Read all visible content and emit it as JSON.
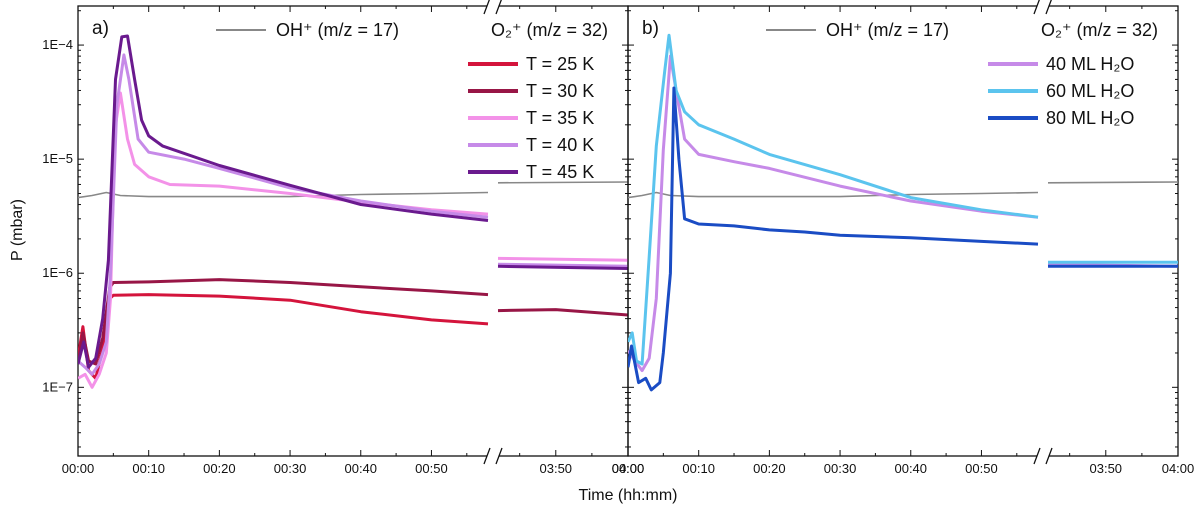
{
  "chart_data": {
    "type": "line",
    "ylabel": "P (mbar)",
    "xlabel": "Time (hh:mm)",
    "yscale": "log",
    "ylim": [
      2.5e-08,
      0.00022
    ],
    "yticks": [
      {
        "value": 0.0001,
        "label": "1E−4"
      },
      {
        "value": 1e-05,
        "label": "1E−5"
      },
      {
        "value": 1e-06,
        "label": "1E−6"
      },
      {
        "value": 1e-07,
        "label": "1E−7"
      }
    ],
    "xticks": [
      {
        "value": 0,
        "label": "00:00"
      },
      {
        "value": 10,
        "label": "00:10"
      },
      {
        "value": 20,
        "label": "00:20"
      },
      {
        "value": 30,
        "label": "00:30"
      },
      {
        "value": 40,
        "label": "00:40"
      },
      {
        "value": 50,
        "label": "00:50"
      },
      {
        "value": 230,
        "label": "03:50"
      },
      {
        "value": 240,
        "label": "04:00"
      }
    ],
    "x_segments": [
      [
        0,
        58
      ],
      [
        222,
        240
      ]
    ],
    "legend_left_header": "OH⁺ (m/z = 17)",
    "legend_right_header": "O₂⁺ (m/z = 32)",
    "panels": [
      {
        "label": "a)",
        "reference": {
          "name": "OH+ (m/z = 17)",
          "color": "#888888",
          "points": [
            [
              0,
              4.6e-06
            ],
            [
              2,
              4.8e-06
            ],
            [
              4,
              5.1e-06
            ],
            [
              6,
              4.8e-06
            ],
            [
              10,
              4.7e-06
            ],
            [
              20,
              4.7e-06
            ],
            [
              30,
              4.7e-06
            ],
            [
              40,
              4.9e-06
            ],
            [
              50,
              5e-06
            ],
            [
              58,
              5.1e-06
            ],
            [
              222,
              6.2e-06
            ],
            [
              240,
              6.3e-06
            ]
          ]
        },
        "series": [
          {
            "name": "T = 25 K",
            "color": "#d4143c",
            "points": [
              [
                0,
                1.8e-07
              ],
              [
                0.7,
                3.4e-07
              ],
              [
                1.5,
                1.4e-07
              ],
              [
                2.5,
                1.2e-07
              ],
              [
                3.5,
                2.2e-07
              ],
              [
                4.5,
                6e-07
              ],
              [
                5,
                6.4e-07
              ],
              [
                10,
                6.5e-07
              ],
              [
                20,
                6.3e-07
              ],
              [
                30,
                5.8e-07
              ],
              [
                40,
                4.6e-07
              ],
              [
                50,
                3.9e-07
              ],
              [
                58,
                3.6e-07
              ]
            ]
          },
          {
            "name": "T = 30 K",
            "color": "#981646",
            "points": [
              [
                0,
                1.6e-07
              ],
              [
                0.7,
                3e-07
              ],
              [
                1.5,
                1.7e-07
              ],
              [
                2.5,
                1.6e-07
              ],
              [
                3.5,
                2.7e-07
              ],
              [
                4.5,
                7.5e-07
              ],
              [
                5,
                8.3e-07
              ],
              [
                10,
                8.4e-07
              ],
              [
                20,
                8.8e-07
              ],
              [
                30,
                8.3e-07
              ],
              [
                40,
                7.6e-07
              ],
              [
                50,
                7e-07
              ],
              [
                58,
                6.5e-07
              ],
              [
                222,
                4.7e-07
              ],
              [
                230,
                4.8e-07
              ],
              [
                240,
                4.3e-07
              ]
            ]
          },
          {
            "name": "T = 35 K",
            "color": "#f392e8",
            "points": [
              [
                0,
                1.2e-07
              ],
              [
                1,
                1.3e-07
              ],
              [
                2,
                1e-07
              ],
              [
                3,
                1.3e-07
              ],
              [
                4,
                2e-07
              ],
              [
                4.6,
                6e-07
              ],
              [
                5.2,
                1.8e-05
              ],
              [
                6,
                3.8e-05
              ],
              [
                7,
                1.5e-05
              ],
              [
                8,
                9e-06
              ],
              [
                10,
                7e-06
              ],
              [
                13,
                6e-06
              ],
              [
                20,
                5.8e-06
              ],
              [
                30,
                5e-06
              ],
              [
                40,
                4.2e-06
              ],
              [
                50,
                3.6e-06
              ],
              [
                58,
                3.3e-06
              ],
              [
                222,
                1.35e-06
              ],
              [
                240,
                1.3e-06
              ]
            ]
          },
          {
            "name": "T = 40 K",
            "color": "#c68ae8",
            "points": [
              [
                0,
                1.7e-07
              ],
              [
                1,
                1.5e-07
              ],
              [
                2,
                1.3e-07
              ],
              [
                3,
                1.6e-07
              ],
              [
                4,
                2.5e-07
              ],
              [
                4.6,
                1e-06
              ],
              [
                5.5,
                3e-05
              ],
              [
                6.5,
                8.2e-05
              ],
              [
                7.2,
                5e-05
              ],
              [
                8.5,
                1.5e-05
              ],
              [
                10,
                1.15e-05
              ],
              [
                15,
                1e-05
              ],
              [
                20,
                8.3e-06
              ],
              [
                30,
                5.6e-06
              ],
              [
                40,
                4.3e-06
              ],
              [
                50,
                3.5e-06
              ],
              [
                58,
                3.1e-06
              ],
              [
                222,
                1.2e-06
              ],
              [
                240,
                1.15e-06
              ]
            ]
          },
          {
            "name": "T = 45 K",
            "color": "#6a1a8e",
            "points": [
              [
                0,
                1.6e-07
              ],
              [
                0.8,
                2.5e-07
              ],
              [
                1.5,
                1.5e-07
              ],
              [
                2.5,
                1.8e-07
              ],
              [
                3.5,
                4e-07
              ],
              [
                4.3,
                1.3e-06
              ],
              [
                5.3,
                5e-05
              ],
              [
                6.2,
                0.000118
              ],
              [
                7,
                0.00012
              ],
              [
                8,
                5e-05
              ],
              [
                9,
                2.2e-05
              ],
              [
                10,
                1.6e-05
              ],
              [
                12,
                1.3e-05
              ],
              [
                20,
                8.8e-06
              ],
              [
                30,
                5.9e-06
              ],
              [
                40,
                4e-06
              ],
              [
                50,
                3.3e-06
              ],
              [
                58,
                2.9e-06
              ],
              [
                222,
                1.15e-06
              ],
              [
                240,
                1.1e-06
              ]
            ]
          }
        ]
      },
      {
        "label": "b)",
        "reference": {
          "name": "OH+ (m/z = 17)",
          "color": "#888888",
          "points": [
            [
              0,
              4.6e-06
            ],
            [
              2,
              4.8e-06
            ],
            [
              4,
              5.1e-06
            ],
            [
              6,
              4.8e-06
            ],
            [
              10,
              4.7e-06
            ],
            [
              20,
              4.7e-06
            ],
            [
              30,
              4.7e-06
            ],
            [
              40,
              4.9e-06
            ],
            [
              50,
              5e-06
            ],
            [
              58,
              5.1e-06
            ],
            [
              222,
              6.2e-06
            ],
            [
              240,
              6.3e-06
            ]
          ]
        },
        "series": [
          {
            "name": "40 ML H₂O",
            "color": "#c68ae8",
            "points": [
              [
                0,
                2.1e-07
              ],
              [
                1,
                1.7e-07
              ],
              [
                2,
                1.4e-07
              ],
              [
                3,
                1.8e-07
              ],
              [
                4,
                6e-07
              ],
              [
                5,
                1.2e-05
              ],
              [
                6,
                8e-05
              ],
              [
                6.8,
                4e-05
              ],
              [
                8,
                1.5e-05
              ],
              [
                10,
                1.1e-05
              ],
              [
                15,
                9.5e-06
              ],
              [
                20,
                8.3e-06
              ],
              [
                30,
                5.8e-06
              ],
              [
                40,
                4.3e-06
              ],
              [
                50,
                3.5e-06
              ],
              [
                58,
                3.1e-06
              ],
              [
                222,
                1.2e-06
              ],
              [
                240,
                1.15e-06
              ]
            ]
          },
          {
            "name": "60 ML H₂O",
            "color": "#5bc4ee",
            "points": [
              [
                0,
                2.5e-07
              ],
              [
                0.6,
                3e-07
              ],
              [
                1.2,
                1.7e-07
              ],
              [
                2,
                1.6e-07
              ],
              [
                3,
                1.4e-06
              ],
              [
                4,
                1.3e-05
              ],
              [
                5.2,
                6e-05
              ],
              [
                5.8,
                0.000122
              ],
              [
                6.8,
                4e-05
              ],
              [
                8,
                2.6e-05
              ],
              [
                10,
                2e-05
              ],
              [
                15,
                1.5e-05
              ],
              [
                20,
                1.1e-05
              ],
              [
                30,
                7.3e-06
              ],
              [
                40,
                4.6e-06
              ],
              [
                50,
                3.6e-06
              ],
              [
                58,
                3.1e-06
              ],
              [
                222,
                1.25e-06
              ],
              [
                240,
                1.25e-06
              ]
            ]
          },
          {
            "name": "80 ML H₂O",
            "color": "#1a4cc4",
            "points": [
              [
                0,
                1.5e-07
              ],
              [
                0.5,
                2.3e-07
              ],
              [
                1.5,
                1.1e-07
              ],
              [
                2.5,
                1.2e-07
              ],
              [
                3.3,
                9.5e-08
              ],
              [
                4.5,
                1.1e-07
              ],
              [
                5,
                2e-07
              ],
              [
                6,
                1e-06
              ],
              [
                6.5,
                4.2e-05
              ],
              [
                7.2,
                1e-05
              ],
              [
                8,
                3e-06
              ],
              [
                10,
                2.7e-06
              ],
              [
                15,
                2.6e-06
              ],
              [
                20,
                2.4e-06
              ],
              [
                25,
                2.3e-06
              ],
              [
                30,
                2.15e-06
              ],
              [
                40,
                2.05e-06
              ],
              [
                50,
                1.9e-06
              ],
              [
                58,
                1.8e-06
              ],
              [
                222,
                1.15e-06
              ],
              [
                240,
                1.15e-06
              ]
            ]
          }
        ]
      }
    ]
  }
}
